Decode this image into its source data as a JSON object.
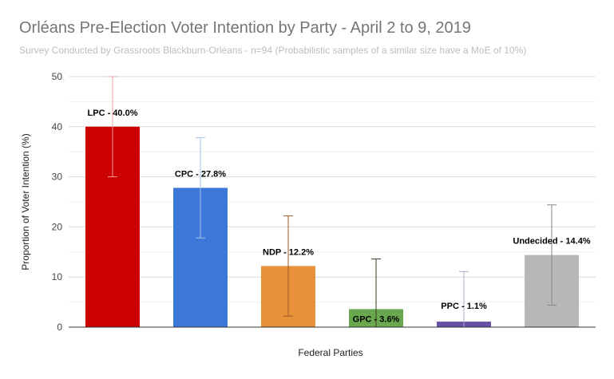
{
  "chart_data": {
    "type": "bar",
    "title": "Orléans Pre-Election Voter Intention by Party - April 2 to 9, 2019",
    "subtitle": "Survey Conducted by Grassroots Blackburn-Orléans - n=94 (Probabilistic samples of a similar size have a MoE of 10%)",
    "xlabel": "Federal Parties",
    "ylabel": "Proportion of Voter Intention (%)",
    "ylim": [
      0,
      50
    ],
    "yticks": [
      "0",
      "10",
      "20",
      "30",
      "40",
      "50"
    ],
    "grid": true,
    "error_margin": 10,
    "categories": [
      "LPC",
      "CPC",
      "NDP",
      "GPC",
      "PPC",
      "Undecided"
    ],
    "values": [
      40.0,
      27.8,
      12.2,
      3.6,
      1.1,
      14.4
    ],
    "data_labels": [
      "LPC - 40.0%",
      "CPC - 27.8%",
      "NDP - 12.2%",
      "GPC - 3.6%",
      "PPC - 1.1%",
      "Undecided - 14.4%"
    ],
    "colors": [
      "#cc0000",
      "#3c78d8",
      "#e69138",
      "#6aa84f",
      "#674ea7",
      "#b7b7b7"
    ],
    "error_bar_colors": [
      "#e8a0a0",
      "#a7c2ee",
      "#a0582a",
      "#3b3b1f",
      "#b0a8c8",
      "#888888"
    ]
  }
}
